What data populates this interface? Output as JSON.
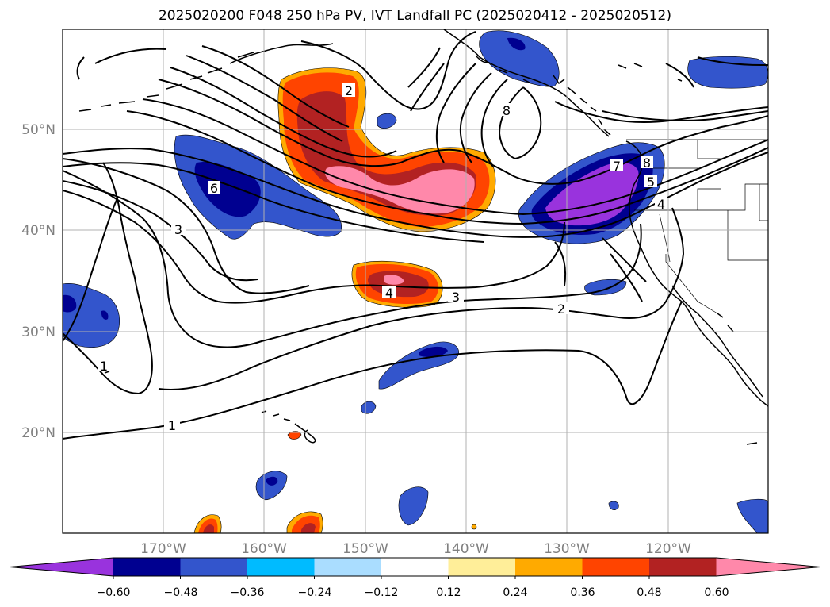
{
  "title": "2025020200 F048 250 hPa PV, IVT Landfall PC (2025020412 - 2025020512)",
  "map": {
    "lat_labels": [
      "50°N",
      "40°N",
      "30°N",
      "20°N"
    ],
    "lon_labels": [
      "170°W",
      "160°W",
      "150°W",
      "140°W",
      "130°W",
      "120°W"
    ],
    "label_color": "#808080"
  },
  "contours": {
    "labels": [
      {
        "text": "1",
        "id": "c1a"
      },
      {
        "text": "1",
        "id": "c1b"
      },
      {
        "text": "2",
        "id": "c2a"
      },
      {
        "text": "2",
        "id": "c2b"
      },
      {
        "text": "3",
        "id": "c3a"
      },
      {
        "text": "3",
        "id": "c3b"
      },
      {
        "text": "4",
        "id": "c4a"
      },
      {
        "text": "4",
        "id": "c4b"
      },
      {
        "text": "5",
        "id": "c5a"
      },
      {
        "text": "6",
        "id": "c6a"
      },
      {
        "text": "7",
        "id": "c7a"
      },
      {
        "text": "8",
        "id": "c8a"
      },
      {
        "text": "8",
        "id": "c8b"
      }
    ]
  },
  "colorbar": {
    "colors": [
      "#9933dd",
      "#000090",
      "#3355cc",
      "#00bbff",
      "#aaddff",
      "#ffffff",
      "#ffee99",
      "#ffaa00",
      "#ff4400",
      "#b22222",
      "#ff88aa"
    ],
    "tick_labels": [
      "−0.60",
      "−0.48",
      "−0.36",
      "−0.24",
      "−0.12",
      "0.12",
      "0.24",
      "0.36",
      "0.48",
      "0.60"
    ]
  }
}
